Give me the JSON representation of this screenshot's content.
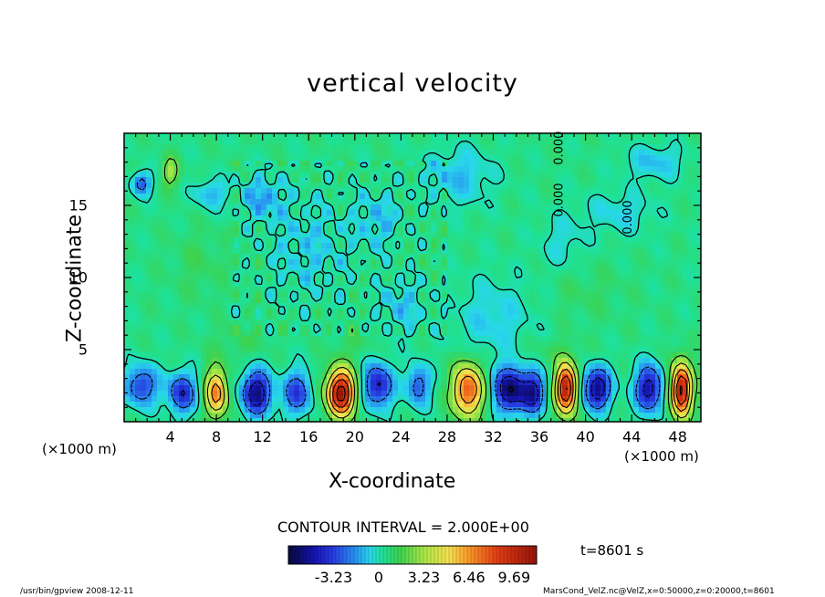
{
  "chart_data": {
    "type": "heatmap",
    "title": "vertical velocity",
    "xlabel": "X-coordinate",
    "ylabel": "Z-coordinate",
    "x_unit": "(×1000 m)",
    "y_unit": "(×1000 m)",
    "xlim": [
      0,
      50
    ],
    "ylim": [
      0,
      20
    ],
    "x_ticks": [
      4,
      8,
      12,
      16,
      20,
      24,
      28,
      32,
      36,
      40,
      44,
      48
    ],
    "y_ticks": [
      5,
      10,
      15
    ],
    "contour_interval": "CONTOUR INTERVAL = 2.000E+00",
    "contour_labels": [
      "0.000",
      "0.000",
      "0.000"
    ],
    "colorbar": {
      "ticks": [
        "-3.23",
        "0",
        "3.23",
        "6.46",
        "9.69"
      ],
      "tick_values": [
        -3.23,
        0,
        3.23,
        6.46,
        9.69
      ],
      "range": [
        -6.46,
        11.3
      ]
    },
    "time_label": "t=8601 s",
    "footer_left": "/usr/bin/gpview  2008-12-11",
    "footer_right": "MarsCond_VelZ.nc@VelZ,x=0:50000,z=0:20000,t=8601",
    "field": {
      "background": 0.6,
      "blobs": [
        {
          "x": 8.0,
          "z": 2.0,
          "rx": 0.9,
          "rz": 1.6,
          "w": 6.5
        },
        {
          "x": 18.8,
          "z": 2.0,
          "rx": 1.2,
          "rz": 1.6,
          "w": 10.5
        },
        {
          "x": 29.8,
          "z": 2.2,
          "rx": 1.3,
          "rz": 1.8,
          "w": 7.5
        },
        {
          "x": 38.3,
          "z": 2.3,
          "rx": 0.9,
          "rz": 1.7,
          "w": 10.0
        },
        {
          "x": 48.3,
          "z": 2.2,
          "rx": 0.9,
          "rz": 1.8,
          "w": 10.0
        },
        {
          "x": 1.5,
          "z": 2.5,
          "rx": 1.4,
          "rz": 1.4,
          "w": -4.0
        },
        {
          "x": 5.0,
          "z": 2.0,
          "rx": 1.2,
          "rz": 1.4,
          "w": -4.5
        },
        {
          "x": 11.5,
          "z": 2.0,
          "rx": 1.3,
          "rz": 1.5,
          "w": -6.0
        },
        {
          "x": 15.0,
          "z": 2.0,
          "rx": 1.2,
          "rz": 1.5,
          "w": -4.0
        },
        {
          "x": 22.0,
          "z": 2.5,
          "rx": 1.3,
          "rz": 1.5,
          "w": -5.0
        },
        {
          "x": 25.5,
          "z": 2.5,
          "rx": 1.0,
          "rz": 1.4,
          "w": -3.5
        },
        {
          "x": 33.5,
          "z": 2.2,
          "rx": 1.4,
          "rz": 1.5,
          "w": -6.5
        },
        {
          "x": 35.5,
          "z": 2.0,
          "rx": 1.0,
          "rz": 1.4,
          "w": -5.0
        },
        {
          "x": 41.0,
          "z": 2.3,
          "rx": 1.2,
          "rz": 1.4,
          "w": -6.0
        },
        {
          "x": 45.5,
          "z": 2.3,
          "rx": 1.2,
          "rz": 1.6,
          "w": -5.5
        },
        {
          "x": 1.5,
          "z": 16.5,
          "rx": 0.8,
          "rz": 0.8,
          "w": -3.5
        },
        {
          "x": 4.0,
          "z": 17.3,
          "rx": 0.7,
          "rz": 1.0,
          "w": 2.5
        },
        {
          "x": 7.5,
          "z": 15.8,
          "rx": 1.5,
          "rz": 1.0,
          "w": -1.8
        },
        {
          "x": 12.0,
          "z": 15.5,
          "rx": 1.8,
          "rz": 1.5,
          "w": -2.0
        },
        {
          "x": 16.0,
          "z": 12.0,
          "rx": 3.5,
          "rz": 3.5,
          "w": -1.2
        },
        {
          "x": 22.0,
          "z": 14.0,
          "rx": 2.0,
          "rz": 2.0,
          "w": -1.5
        },
        {
          "x": 29.0,
          "z": 17.0,
          "rx": 3.0,
          "rz": 2.0,
          "w": -1.6
        },
        {
          "x": 32.0,
          "z": 7.0,
          "rx": 3.5,
          "rz": 3.0,
          "w": -1.3
        },
        {
          "x": 24.0,
          "z": 8.0,
          "rx": 2.0,
          "rz": 2.0,
          "w": -1.4
        },
        {
          "x": 43.0,
          "z": 14.5,
          "rx": 3.0,
          "rz": 1.5,
          "w": -1.2
        },
        {
          "x": 38.0,
          "z": 12.5,
          "rx": 2.0,
          "rz": 2.0,
          "w": -1.0
        },
        {
          "x": 6.5,
          "z": 11.0,
          "rx": 2.5,
          "rz": 2.5,
          "w": 0.6
        },
        {
          "x": 40.0,
          "z": 9.0,
          "rx": 3.5,
          "rz": 2.0,
          "w": 0.5
        },
        {
          "x": 46.0,
          "z": 18.0,
          "rx": 2.5,
          "rz": 1.2,
          "w": -1.6
        },
        {
          "x": 10.0,
          "z": 5.5,
          "rx": 2.5,
          "rz": 1.2,
          "w": 0.6
        },
        {
          "x": 20.0,
          "z": 5.5,
          "rx": 2.0,
          "rz": 1.0,
          "w": 0.5
        },
        {
          "x": 36.0,
          "z": 5.0,
          "rx": 3.0,
          "rz": 1.0,
          "w": 0.5
        }
      ]
    }
  }
}
